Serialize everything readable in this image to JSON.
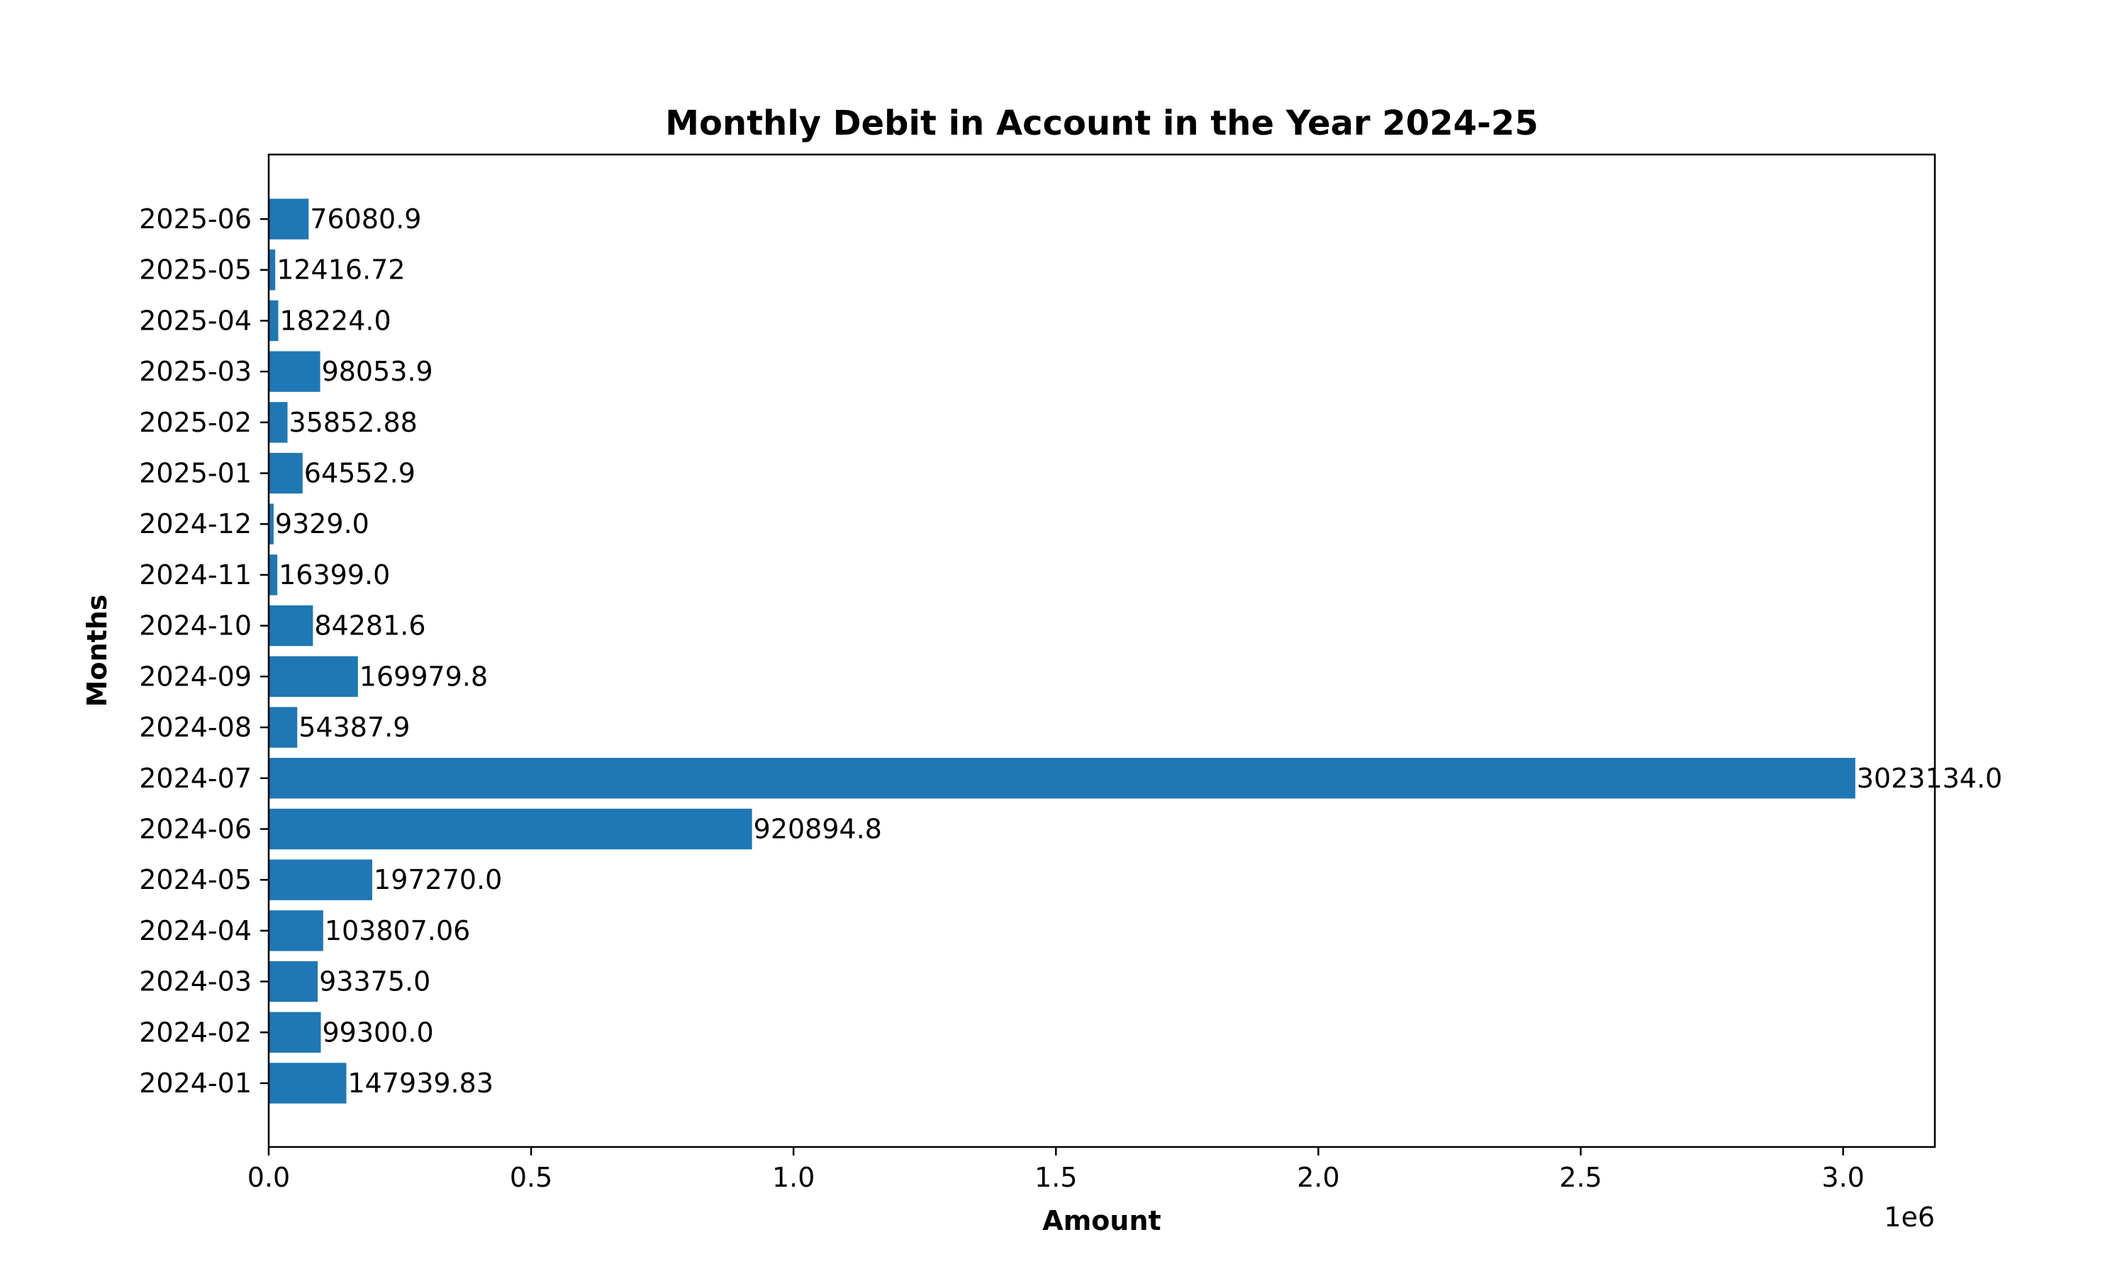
{
  "chart_data": {
    "type": "bar",
    "orientation": "horizontal",
    "title": "Monthly Debit in Account in the Year 2024-25",
    "xlabel": "Amount",
    "ylabel": "Months",
    "x_offset_label": "1e6",
    "x_ticks": [
      0,
      500000,
      1000000,
      1500000,
      2000000,
      2500000,
      3000000
    ],
    "x_tick_labels": [
      "0.0",
      "0.5",
      "1.0",
      "1.5",
      "2.0",
      "2.5",
      "3.0"
    ],
    "xlim": [
      0,
      3174790
    ],
    "grid": false,
    "bar_color": "#1f77b4",
    "categories": [
      "2024-01",
      "2024-02",
      "2024-03",
      "2024-04",
      "2024-05",
      "2024-06",
      "2024-07",
      "2024-08",
      "2024-09",
      "2024-10",
      "2024-11",
      "2024-12",
      "2025-01",
      "2025-02",
      "2025-03",
      "2025-04",
      "2025-05",
      "2025-06"
    ],
    "values": [
      147939.83,
      99300.0,
      93375.0,
      103807.06,
      197270.0,
      920894.8,
      3023134.0,
      54387.9,
      169979.8,
      84281.6,
      16399.0,
      9329.0,
      64552.9,
      35852.88,
      98053.9,
      18224.0,
      12416.72,
      76080.9
    ],
    "value_labels": [
      "147939.83",
      "99300.0",
      "93375.0",
      "103807.06",
      "197270.0",
      "920894.8",
      "3023134.0",
      "54387.9",
      "169979.8",
      "84281.6",
      "16399.0",
      "9329.0",
      "64552.9",
      "35852.88",
      "98053.9",
      "18224.0",
      "12416.72",
      "76080.9"
    ]
  }
}
